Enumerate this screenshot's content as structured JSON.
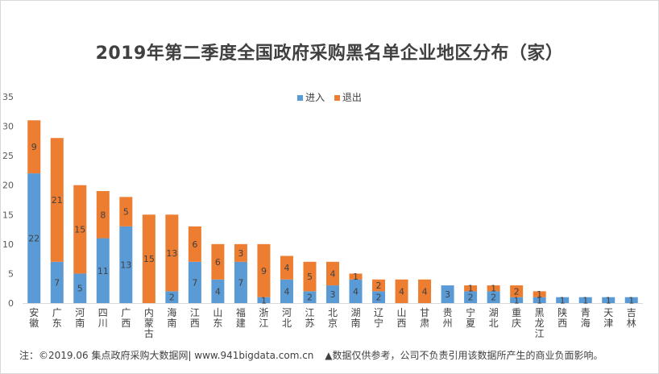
{
  "chart_data": {
    "type": "bar",
    "stacked": true,
    "title": "2019年第二季度全国政府采购黑名单企业地区分布（家）",
    "categories": [
      "安徽",
      "广东",
      "河南",
      "四川",
      "广西",
      "内蒙古",
      "海南",
      "江西",
      "山东",
      "福建",
      "浙江",
      "河北",
      "江苏",
      "北京",
      "湖南",
      "辽宁",
      "山西",
      "甘肃",
      "贵州",
      "宁夏",
      "湖北",
      "重庆",
      "黑龙江",
      "陕西",
      "青海",
      "天津",
      "吉林"
    ],
    "series": [
      {
        "name": "进入",
        "color": "#5b9bd5",
        "values": [
          22,
          7,
          5,
          11,
          13,
          0,
          2,
          7,
          4,
          7,
          1,
          4,
          2,
          3,
          4,
          2,
          0,
          0,
          3,
          2,
          2,
          1,
          1,
          1,
          1,
          1,
          1
        ]
      },
      {
        "name": "退出",
        "color": "#ed7d31",
        "values": [
          9,
          21,
          15,
          8,
          5,
          15,
          13,
          6,
          6,
          3,
          9,
          4,
          5,
          4,
          1,
          2,
          4,
          4,
          0,
          1,
          1,
          2,
          1,
          0,
          0,
          0,
          0
        ]
      }
    ],
    "ylim": [
      0,
      35
    ],
    "yticks": [
      0,
      5,
      10,
      15,
      20,
      25,
      30,
      35
    ],
    "legend_position": "top-center",
    "grid": false
  },
  "legend": {
    "entry1": "进入",
    "entry2": "退出"
  },
  "footnote": {
    "left": "注：©2019.06 集点政府采购大数据网| www.941bigdata.com.cn",
    "right": "▲数据仅供参考，公司不负责引用该数据所产生的商业负面影响。"
  }
}
